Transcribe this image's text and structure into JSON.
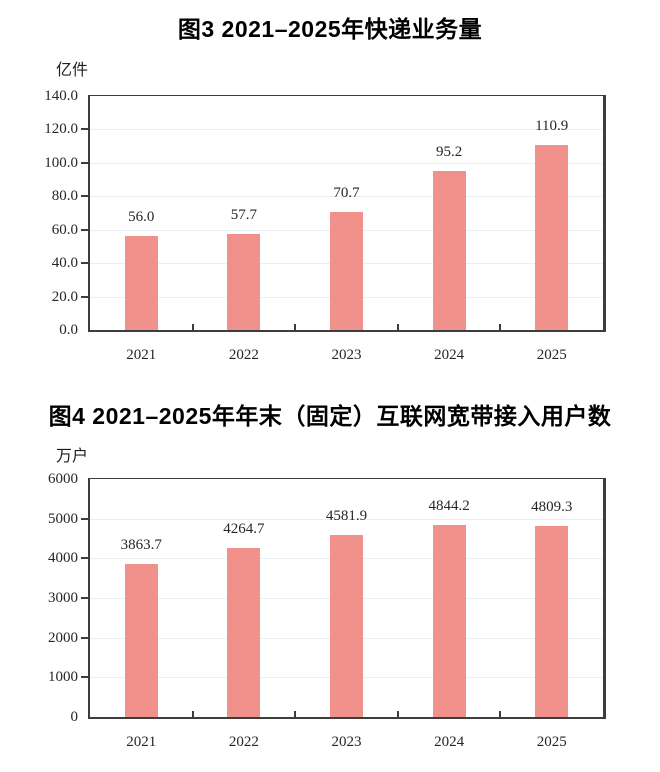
{
  "page": {
    "background": "#ffffff"
  },
  "styles": {
    "axis_color": "#3d3d3d",
    "grid_color": "#e9eff5",
    "text_color": "#262626",
    "bar_color": "#F0928B"
  },
  "chart_data": [
    {
      "type": "bar",
      "title": "图3 2021–2025年快递业务量",
      "unit_label": "亿件",
      "categories": [
        "2021",
        "2022",
        "2023",
        "2024",
        "2025"
      ],
      "values": [
        56.0,
        57.7,
        70.7,
        95.2,
        110.9
      ],
      "value_labels": [
        "56.0",
        "57.7",
        "70.7",
        "95.2",
        "110.9"
      ],
      "xlabel": "",
      "ylabel": "亿件",
      "ylim": [
        0,
        140
      ],
      "ytick_step": 20,
      "ytick_labels": [
        "0.0",
        "20.0",
        "40.0",
        "60.0",
        "80.0",
        "100.0",
        "120.0",
        "140.0"
      ],
      "grid": true,
      "legend": false,
      "bar_color": "#F0928B"
    },
    {
      "type": "bar",
      "title": "图4 2021–2025年年末（固定）互联网宽带接入用户数",
      "unit_label": "万户",
      "categories": [
        "2021",
        "2022",
        "2023",
        "2024",
        "2025"
      ],
      "values": [
        3863.7,
        4264.7,
        4581.9,
        4844.2,
        4809.3
      ],
      "value_labels": [
        "3863.7",
        "4264.7",
        "4581.9",
        "4844.2",
        "4809.3"
      ],
      "xlabel": "",
      "ylabel": "万户",
      "ylim": [
        0,
        6000
      ],
      "ytick_step": 1000,
      "ytick_labels": [
        "0",
        "1000",
        "2000",
        "3000",
        "4000",
        "5000",
        "6000"
      ],
      "grid": true,
      "legend": false,
      "bar_color": "#F0928B"
    }
  ]
}
